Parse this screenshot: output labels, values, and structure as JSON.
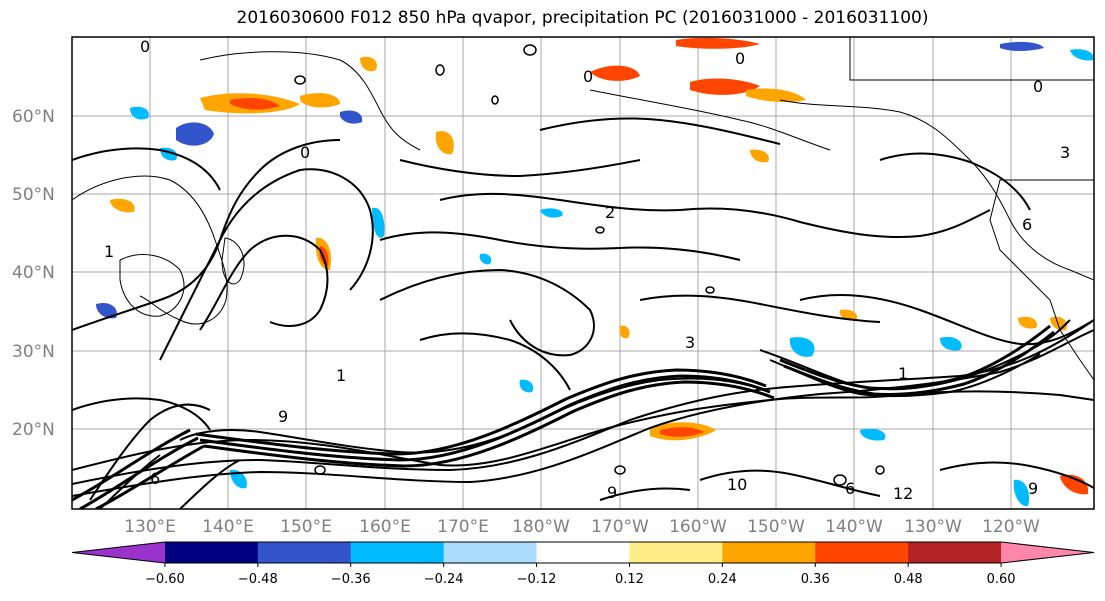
{
  "title": "2016030600 F012 850 hPa qvapor, precipitation PC (2016031000 - 2016031100)",
  "map": {
    "lat_labels": [
      "60°N",
      "50°N",
      "40°N",
      "30°N",
      "20°N"
    ],
    "lon_labels": [
      "130°E",
      "140°E",
      "150°E",
      "160°E",
      "170°E",
      "180°W",
      "170°W",
      "160°W",
      "150°W",
      "140°W",
      "130°W",
      "120°W"
    ],
    "contour_labels": [
      "0",
      "1",
      "2",
      "3",
      "6",
      "9",
      "10",
      "12"
    ],
    "colors": {
      "contour": "#000000",
      "grid": "#a0a0a0",
      "coast": "#000000"
    }
  },
  "colorbar": {
    "colors": [
      "#9933cc",
      "#000080",
      "#3355cc",
      "#00bbff",
      "#aaddff",
      "#ffffff",
      "#ffee88",
      "#ffa500",
      "#ff4500",
      "#b22222",
      "#ff88aa"
    ],
    "tick_labels": [
      "−0.60",
      "−0.48",
      "−0.36",
      "−0.24",
      "−0.12",
      "0.12",
      "0.24",
      "0.36",
      "0.48",
      "0.60"
    ]
  }
}
